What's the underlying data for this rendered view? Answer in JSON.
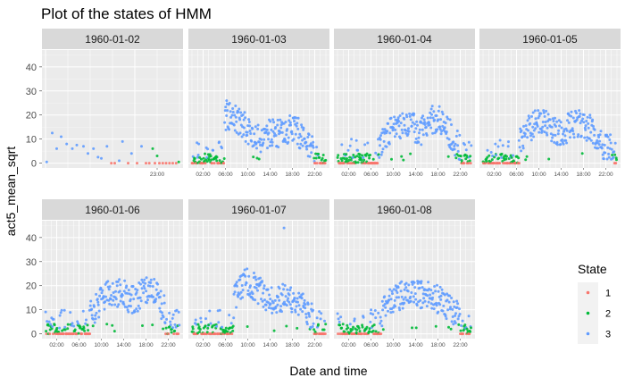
{
  "title": "Plot of the states of HMM",
  "chart_data": {
    "type": "scatter",
    "title": "Plot of the states of HMM",
    "xlabel": "Date and time",
    "ylabel": "act5_mean_sqrt",
    "ylim": [
      -2,
      47
    ],
    "y_ticks": [
      0,
      10,
      20,
      30,
      40
    ],
    "x_tick_labels": [
      "02:00",
      "06:00",
      "10:00",
      "14:00",
      "18:00",
      "22:00"
    ],
    "grid": true,
    "legend": {
      "title": "State",
      "position": "right",
      "entries": [
        {
          "label": "1",
          "color": "#F8766D"
        },
        {
          "label": "2",
          "color": "#00BA38"
        },
        {
          "label": "3",
          "color": "#619CFF"
        }
      ]
    },
    "facets": [
      {
        "label": "1960-01-02",
        "x_ticks": [
          {
            "hour": 23,
            "label": "23:00"
          }
        ],
        "x_range": [
          18,
          24
        ],
        "points": [
          {
            "hour": 18.05,
            "value": 0.5,
            "state": 3
          },
          {
            "hour": 18.3,
            "value": 12.5,
            "state": 3
          },
          {
            "hour": 18.5,
            "value": 6.0,
            "state": 3
          },
          {
            "hour": 18.7,
            "value": 11.0,
            "state": 3
          },
          {
            "hour": 18.95,
            "value": 8.0,
            "state": 3
          },
          {
            "hour": 19.2,
            "value": 6.0,
            "state": 3
          },
          {
            "hour": 19.4,
            "value": 7.5,
            "state": 3
          },
          {
            "hour": 19.7,
            "value": 7.0,
            "state": 3
          },
          {
            "hour": 19.9,
            "value": 4.0,
            "state": 3
          },
          {
            "hour": 20.15,
            "value": 6.0,
            "state": 3
          },
          {
            "hour": 20.35,
            "value": 2.5,
            "state": 3
          },
          {
            "hour": 20.5,
            "value": 2.0,
            "state": 3
          },
          {
            "hour": 20.75,
            "value": 7.0,
            "state": 3
          },
          {
            "hour": 20.95,
            "value": 0.0,
            "state": 1
          },
          {
            "hour": 21.1,
            "value": 0.0,
            "state": 1
          },
          {
            "hour": 21.3,
            "value": 1.0,
            "state": 3
          },
          {
            "hour": 21.45,
            "value": 9.0,
            "state": 3
          },
          {
            "hour": 21.7,
            "value": 0.0,
            "state": 1
          },
          {
            "hour": 21.85,
            "value": 4.0,
            "state": 3
          },
          {
            "hour": 22.1,
            "value": 0.0,
            "state": 1
          },
          {
            "hour": 22.3,
            "value": 7.0,
            "state": 3
          },
          {
            "hour": 22.5,
            "value": 0.0,
            "state": 1
          },
          {
            "hour": 22.65,
            "value": 0.0,
            "state": 1
          },
          {
            "hour": 22.8,
            "value": 6.0,
            "state": 2
          },
          {
            "hour": 22.9,
            "value": 0.0,
            "state": 1
          },
          {
            "hour": 23.0,
            "value": 3.0,
            "state": 2
          },
          {
            "hour": 23.1,
            "value": 0.0,
            "state": 1
          },
          {
            "hour": 23.25,
            "value": 0.0,
            "state": 1
          },
          {
            "hour": 23.4,
            "value": 0.0,
            "state": 1
          },
          {
            "hour": 23.55,
            "value": 0.0,
            "state": 1
          },
          {
            "hour": 23.7,
            "value": 0.0,
            "state": 1
          },
          {
            "hour": 23.85,
            "value": 0.0,
            "state": 1
          },
          {
            "hour": 23.97,
            "value": 0.5,
            "state": 2
          }
        ]
      },
      {
        "label": "1960-01-03",
        "profile": "a"
      },
      {
        "label": "1960-01-04",
        "profile": "b"
      },
      {
        "label": "1960-01-05",
        "profile": "c"
      },
      {
        "label": "1960-01-06",
        "profile": "d"
      },
      {
        "label": "1960-01-07",
        "profile": "e"
      },
      {
        "label": "1960-01-08",
        "profile": "f"
      }
    ]
  }
}
